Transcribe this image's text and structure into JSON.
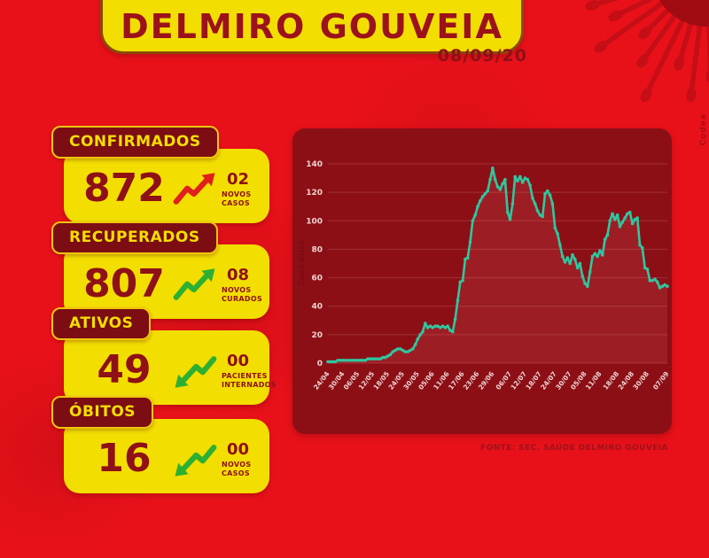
{
  "header": {
    "title": "DELMIRO GOUVEIA",
    "date": "08/09/20"
  },
  "stats": [
    {
      "label": "CONFIRMADOS",
      "value": "872",
      "delta": "02",
      "delta_label": "NOVOS CASOS",
      "trend": "up",
      "trend_color": "#e0201d"
    },
    {
      "label": "RECUPERADOS",
      "value": "807",
      "delta": "08",
      "delta_label": "NOVOS CURADOS",
      "trend": "up",
      "trend_color": "#2db031"
    },
    {
      "label": "ATIVOS",
      "value": "49",
      "delta": "00",
      "delta_label": "PACIENTES INTERNADOS",
      "trend": "down",
      "trend_color": "#2db031"
    },
    {
      "label": "ÓBITOS",
      "value": "16",
      "delta": "00",
      "delta_label": "NOVOS CASOS",
      "trend": "down",
      "trend_color": "#2db031"
    }
  ],
  "footer": {
    "source": "FONTE: SEC. SAÚDE DELMIRO GOUVEIA"
  },
  "credit": "Codea",
  "colors": {
    "background": "#e8111a",
    "panel": "#8c0f16",
    "card_yellow": "#f2de00",
    "maroon_text": "#8f1016",
    "line": "#2fc7a0",
    "green": "#2db031",
    "red": "#e0201d"
  },
  "chart_data": {
    "type": "line",
    "title": "",
    "xlabel": "",
    "ylabel": "Casos ativos",
    "ylim": [
      0,
      140
    ],
    "yticks": [
      0,
      20,
      40,
      60,
      80,
      100,
      120,
      140
    ],
    "grid": true,
    "legend_position": "none",
    "line_color": "#2fc7a0",
    "start_date": "24/04",
    "end_date": "07/09",
    "x_tick_labels": [
      "24/04",
      "30/04",
      "06/05",
      "12/05",
      "18/05",
      "24/05",
      "30/05",
      "05/06",
      "11/06",
      "17/06",
      "23/06",
      "29/06",
      "06/07",
      "12/07",
      "18/07",
      "24/07",
      "30/07",
      "05/08",
      "11/08",
      "18/08",
      "24/08",
      "30/08",
      "07/09"
    ],
    "x_tick_days": [
      0,
      6,
      12,
      18,
      24,
      30,
      36,
      42,
      48,
      54,
      60,
      66,
      73,
      79,
      85,
      91,
      97,
      103,
      109,
      116,
      122,
      128,
      136
    ],
    "values": [
      1,
      1,
      1,
      1,
      2,
      2,
      2,
      2,
      2,
      2,
      2,
      2,
      2,
      2,
      2,
      2,
      3,
      3,
      3,
      3,
      3,
      3,
      4,
      4,
      5,
      6,
      8,
      9,
      10,
      10,
      9,
      8,
      8,
      9,
      10,
      13,
      17,
      20,
      22,
      28,
      25,
      26,
      25,
      26,
      26,
      25,
      26,
      25,
      26,
      23,
      22,
      31,
      44,
      57,
      58,
      73,
      74,
      85,
      100,
      104,
      110,
      114,
      117,
      119,
      121,
      129,
      137,
      129,
      124,
      122,
      126,
      129,
      106,
      101,
      112,
      131,
      128,
      131,
      127,
      130,
      129,
      125,
      116,
      112,
      107,
      104,
      103,
      119,
      121,
      118,
      112,
      95,
      91,
      83,
      75,
      71,
      74,
      70,
      76,
      73,
      67,
      70,
      61,
      56,
      54,
      64,
      75,
      77,
      75,
      79,
      76,
      87,
      90,
      100,
      105,
      101,
      104,
      96,
      99,
      102,
      105,
      106,
      98,
      101,
      102,
      83,
      81,
      67,
      66,
      58,
      58,
      59,
      57,
      53,
      54,
      55,
      54
    ]
  }
}
